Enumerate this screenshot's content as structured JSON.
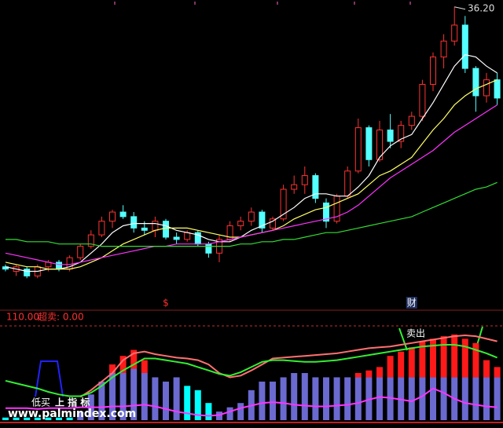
{
  "chart_data": [
    {
      "type": "candlestick",
      "ylim": [
        23.0,
        36.5
      ],
      "up_color": "#ff3232",
      "down_color": "#54ffff",
      "open": [
        24.8,
        24.6,
        24.7,
        24.4,
        24.8,
        25.0,
        24.7,
        25.2,
        25.7,
        26.2,
        26.8,
        27.2,
        27.0,
        26.5,
        26.4,
        26.8,
        26.1,
        26.0,
        26.3,
        25.8,
        25.4,
        26.0,
        26.6,
        26.8,
        27.2,
        26.5,
        26.9,
        28.2,
        28.4,
        28.8,
        27.6,
        26.8,
        27.9,
        29.0,
        30.9,
        29.5,
        30.8,
        30.3,
        31.0,
        31.4,
        32.8,
        34.0,
        34.7,
        35.4,
        33.5,
        32.3,
        33.0
      ],
      "high": [
        24.9,
        24.9,
        24.8,
        24.9,
        25.1,
        25.1,
        25.3,
        25.8,
        26.4,
        27.0,
        27.3,
        27.5,
        27.2,
        26.8,
        27.0,
        26.9,
        26.3,
        26.4,
        26.4,
        25.9,
        26.2,
        26.8,
        27.0,
        27.4,
        27.3,
        27.0,
        28.4,
        28.8,
        29.2,
        28.9,
        27.8,
        28.0,
        29.2,
        31.3,
        31.0,
        31.2,
        31.5,
        31.2,
        31.6,
        33.0,
        34.2,
        35.0,
        36.2,
        35.8,
        33.6,
        33.3,
        33.3
      ],
      "low": [
        24.6,
        24.4,
        24.3,
        24.3,
        24.6,
        24.6,
        24.6,
        25.1,
        25.6,
        26.1,
        26.5,
        26.9,
        26.3,
        26.2,
        26.1,
        26.0,
        25.8,
        25.9,
        25.7,
        25.2,
        25.0,
        25.9,
        26.4,
        26.6,
        26.3,
        26.4,
        26.8,
        28.0,
        28.0,
        27.6,
        26.5,
        26.7,
        27.8,
        28.9,
        29.2,
        29.4,
        30.0,
        30.0,
        30.8,
        31.2,
        32.5,
        33.5,
        34.5,
        33.3,
        31.6,
        32.0,
        31.9
      ],
      "close": [
        24.7,
        24.8,
        24.4,
        24.8,
        25.0,
        24.7,
        25.2,
        25.7,
        26.2,
        26.8,
        27.2,
        27.0,
        26.5,
        26.4,
        26.8,
        26.1,
        26.0,
        26.3,
        25.8,
        25.4,
        26.0,
        26.6,
        26.8,
        27.2,
        26.5,
        26.9,
        28.2,
        28.4,
        28.8,
        27.8,
        26.8,
        27.9,
        29.0,
        30.9,
        29.5,
        30.8,
        30.3,
        31.0,
        31.4,
        32.8,
        34.0,
        34.7,
        35.4,
        33.5,
        32.3,
        33.0,
        32.2
      ],
      "lines": [
        {
          "color": "#ffffff",
          "values": [
            24.8,
            24.7,
            24.6,
            24.6,
            24.7,
            24.7,
            24.8,
            25.0,
            25.4,
            25.8,
            26.3,
            26.6,
            26.7,
            26.7,
            26.7,
            26.6,
            26.4,
            26.3,
            26.2,
            26.0,
            25.9,
            25.9,
            26.1,
            26.4,
            26.6,
            26.8,
            27.1,
            27.4,
            27.8,
            28.0,
            28.0,
            27.9,
            27.9,
            28.3,
            28.8,
            29.6,
            30.1,
            30.4,
            30.6,
            31.3,
            32.0,
            32.8,
            33.6,
            34.1,
            34.0,
            33.6,
            33.3
          ]
        },
        {
          "color": "#ffff66",
          "values": [
            25.0,
            24.9,
            24.8,
            24.8,
            24.7,
            24.7,
            24.7,
            24.8,
            25.0,
            25.2,
            25.5,
            25.8,
            26.0,
            26.2,
            26.4,
            26.5,
            26.5,
            26.5,
            26.4,
            26.3,
            26.2,
            26.1,
            26.1,
            26.2,
            26.3,
            26.4,
            26.6,
            26.9,
            27.1,
            27.3,
            27.4,
            27.6,
            27.8,
            28.0,
            28.4,
            28.8,
            29.0,
            29.3,
            29.6,
            30.2,
            30.8,
            31.3,
            31.9,
            32.3,
            32.6,
            32.8,
            33.0
          ]
        },
        {
          "color": "#ff33ff",
          "values": [
            25.4,
            25.3,
            25.2,
            25.1,
            25.0,
            24.9,
            24.9,
            25.0,
            25.1,
            25.2,
            25.3,
            25.4,
            25.5,
            25.6,
            25.7,
            25.7,
            25.8,
            25.8,
            25.8,
            25.8,
            25.9,
            26.0,
            26.1,
            26.2,
            26.3,
            26.4,
            26.5,
            26.6,
            26.7,
            26.8,
            26.9,
            27.0,
            27.2,
            27.5,
            27.9,
            28.3,
            28.7,
            29.0,
            29.3,
            29.6,
            29.9,
            30.3,
            30.7,
            31.0,
            31.3,
            31.6,
            31.9
          ]
        },
        {
          "color": "#33dd33",
          "values": [
            26.0,
            26.0,
            25.9,
            25.9,
            25.9,
            25.8,
            25.8,
            25.8,
            25.8,
            25.7,
            25.7,
            25.7,
            25.7,
            25.7,
            25.7,
            25.7,
            25.7,
            25.7,
            25.7,
            25.7,
            25.7,
            25.7,
            25.8,
            25.8,
            25.9,
            25.9,
            26.0,
            26.0,
            26.1,
            26.2,
            26.3,
            26.3,
            26.4,
            26.5,
            26.6,
            26.7,
            26.8,
            26.9,
            27.0,
            27.2,
            27.4,
            27.6,
            27.8,
            28.0,
            28.2,
            28.3,
            28.5
          ]
        }
      ],
      "high_label": {
        "value": 36.2,
        "label": "36.20"
      },
      "signals": [
        "$",
        "财"
      ]
    },
    {
      "type": "bar",
      "ylim": [
        0,
        110
      ],
      "yticks": [
        {
          "value": 110,
          "label": "110.00"
        }
      ],
      "oversold_label": "超卖: 0.00",
      "series": [
        {
          "color": "#6a6ad0",
          "values": [
            null,
            null,
            null,
            null,
            null,
            null,
            null,
            10,
            30,
            45,
            55,
            55,
            60,
            55,
            50,
            45,
            50,
            null,
            null,
            null,
            10,
            15,
            20,
            35,
            45,
            45,
            50,
            55,
            55,
            50,
            50,
            50,
            50,
            50,
            50,
            50,
            50,
            50,
            50,
            50,
            50,
            50,
            50,
            50,
            50,
            50,
            50
          ]
        },
        {
          "color": "#ff1a1a",
          "values": [
            null,
            null,
            null,
            null,
            null,
            null,
            null,
            null,
            null,
            null,
            10,
            20,
            22,
            15,
            null,
            null,
            null,
            null,
            null,
            null,
            null,
            null,
            null,
            null,
            null,
            null,
            null,
            null,
            null,
            null,
            null,
            null,
            null,
            5,
            8,
            12,
            25,
            30,
            35,
            42,
            45,
            48,
            50,
            45,
            40,
            20,
            12
          ]
        },
        {
          "color": "#00ffff",
          "values": [
            3,
            3,
            3,
            3,
            3,
            3,
            3,
            null,
            null,
            null,
            null,
            null,
            null,
            null,
            null,
            null,
            null,
            40,
            35,
            20,
            null,
            null,
            null,
            null,
            null,
            null,
            null,
            null,
            null,
            null,
            null,
            null,
            null,
            null,
            null,
            null,
            null,
            null,
            null,
            null,
            null,
            null,
            null,
            null,
            null,
            null,
            null
          ]
        }
      ],
      "lines": [
        {
          "color": "#ff7070",
          "values": [
            null,
            null,
            null,
            null,
            null,
            null,
            null,
            27,
            35,
            45,
            55,
            70,
            78,
            80,
            77,
            75,
            73,
            72,
            70,
            65,
            55,
            50,
            52,
            58,
            65,
            72,
            73,
            74,
            75,
            76,
            77,
            78,
            80,
            82,
            84,
            85,
            86,
            88,
            90,
            92,
            94,
            96,
            98,
            99,
            98,
            95,
            92
          ]
        },
        {
          "color": "#33ee33",
          "values": [
            46,
            43,
            40,
            37,
            33,
            30,
            28,
            28,
            32,
            40,
            50,
            58,
            65,
            72,
            72,
            70,
            68,
            66,
            62,
            58,
            54,
            52,
            56,
            62,
            68,
            70,
            70,
            69,
            68,
            68,
            69,
            70,
            72,
            74,
            76,
            78,
            80,
            82,
            84,
            86,
            87,
            88,
            88,
            86,
            82,
            78,
            73
          ]
        },
        {
          "color": "#ff33ff",
          "values": [
            14,
            14,
            14,
            13,
            14,
            14,
            14,
            15,
            15,
            15,
            16,
            16,
            17,
            18,
            16,
            13,
            10,
            8,
            6,
            5,
            6,
            10,
            14,
            17,
            20,
            21,
            20,
            18,
            17,
            16,
            16,
            17,
            18,
            20,
            24,
            27,
            26,
            24,
            22,
            28,
            37,
            32,
            25,
            20,
            18,
            16,
            15
          ]
        }
      ],
      "sell_label": "卖出",
      "buy_label": "低买",
      "indicator_label": "上 指 标",
      "watermark": "www.palmindex.com"
    }
  ]
}
